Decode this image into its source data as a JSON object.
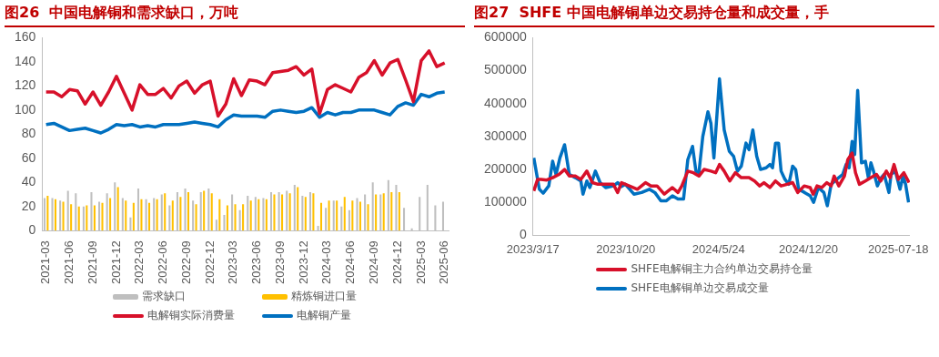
{
  "chart_data": [
    {
      "type": "bar",
      "title": "图26  中国电解铜和需求缺口，万吨",
      "legend": "bottom",
      "ylim": [
        0,
        160
      ],
      "yticks": [
        0,
        20,
        40,
        60,
        80,
        100,
        120,
        140,
        160
      ],
      "categories": [
        "2021-03",
        null,
        null,
        "2021-06",
        null,
        null,
        "2021-09",
        null,
        null,
        "2021-12",
        null,
        null,
        "2022-03",
        null,
        null,
        "2022-06",
        null,
        null,
        "2022-09",
        null,
        null,
        "2022-12",
        null,
        null,
        "2023-03",
        null,
        null,
        "2023-06",
        null,
        null,
        "2023-09",
        null,
        null,
        "2023-12",
        null,
        null,
        "2024-03",
        null,
        null,
        "2024-06",
        null,
        null,
        "2024-09",
        null,
        null,
        "2024-12",
        null,
        null,
        "2025-03",
        null,
        null,
        "2025-06"
      ],
      "series": [
        {
          "name": "需求缺口",
          "color": "#bfbfbf",
          "values": [
            27,
            27,
            25,
            33,
            31,
            20,
            32,
            24,
            31,
            40,
            27,
            11,
            35,
            26,
            27,
            30,
            21,
            32,
            35,
            25,
            32,
            35,
            9,
            13,
            30,
            17,
            29,
            28,
            27,
            32,
            32,
            33,
            38,
            29,
            32,
            4,
            19,
            25,
            20,
            17,
            27,
            30,
            40,
            30,
            42,
            38,
            19,
            2,
            28,
            38,
            21,
            24
          ]
        },
        {
          "name": "精炼铜进口量",
          "color": "#ffc000",
          "values": [
            29,
            26,
            24,
            22,
            20,
            21,
            21,
            23,
            27,
            36,
            25,
            23,
            26,
            23,
            26,
            31,
            25,
            28,
            32,
            22,
            33,
            31,
            26,
            21,
            22,
            22,
            25,
            26,
            26,
            30,
            30,
            31,
            36,
            28,
            31,
            23,
            25,
            25,
            28,
            25,
            24,
            22,
            30,
            31,
            32,
            32,
            null,
            null,
            null,
            null,
            null,
            null
          ]
        },
        {
          "name": "电解铜实际消费量",
          "type": "line",
          "color": "#d7102a",
          "values": [
            115,
            115,
            111,
            117,
            116,
            105,
            115,
            104,
            115,
            128,
            114,
            100,
            121,
            113,
            113,
            118,
            110,
            120,
            124,
            114,
            121,
            124,
            95,
            105,
            126,
            112,
            125,
            124,
            121,
            131,
            132,
            133,
            136,
            129,
            134,
            97,
            117,
            121,
            118,
            115,
            127,
            131,
            141,
            129,
            139,
            142,
            125,
            107,
            141,
            149,
            136,
            139
          ]
        },
        {
          "name": "电解铜产量",
          "type": "line",
          "color": "#0070c0",
          "values": [
            88,
            89,
            86,
            83,
            84,
            85,
            83,
            81,
            84,
            88,
            87,
            88,
            86,
            87,
            86,
            88,
            88,
            88,
            89,
            90,
            89,
            88,
            86,
            92,
            96,
            95,
            95,
            95,
            94,
            99,
            100,
            99,
            98,
            99,
            102,
            94,
            98,
            96,
            98,
            98,
            100,
            100,
            100,
            98,
            96,
            103,
            106,
            104,
            113,
            111,
            114,
            115
          ]
        }
      ]
    },
    {
      "type": "line",
      "title": "图27  SHFE 中国电解铜单边交易持仓量和成交量，手",
      "legend": "bottom",
      "ylim": [
        0,
        600000
      ],
      "yticks": [
        0,
        100000,
        200000,
        300000,
        400000,
        500000,
        600000
      ],
      "xlim": [
        "2023-03-17",
        "2025-08-14"
      ],
      "xticks": [
        {
          "value": "2023-03-17",
          "label": "2023/3/17"
        },
        {
          "value": "2023-10-20",
          "label": "2023/10/20"
        },
        {
          "value": "2024-05-24",
          "label": "2024/5/24"
        },
        {
          "value": "2024-12-20",
          "label": "2024/12/20"
        },
        {
          "value": "2025-07-18",
          "label": "2025-07-18"
        }
      ],
      "series": [
        {
          "name": "SHFE电解铜主力合约单边交易持仓量",
          "color": "#d7102a",
          "x": [
            "2023-03-19",
            "2023-03-28",
            "2023-04-05",
            "2023-04-18",
            "2023-05-02",
            "2023-05-17",
            "2023-05-30",
            "2023-06-10",
            "2023-06-24",
            "2023-07-07",
            "2023-07-21",
            "2023-08-03",
            "2023-08-16",
            "2023-09-03",
            "2023-09-21",
            "2023-10-01",
            "2023-10-10",
            "2023-10-28",
            "2023-11-16",
            "2023-12-05",
            "2023-12-18",
            "2024-01-01",
            "2024-01-18",
            "2024-02-06",
            "2024-02-19",
            "2024-02-28",
            "2024-03-13",
            "2024-03-26",
            "2024-04-08",
            "2024-04-20",
            "2024-05-06",
            "2024-05-17",
            "2024-05-26",
            "2024-06-06",
            "2024-06-19",
            "2024-07-02",
            "2024-07-16",
            "2024-08-03",
            "2024-08-16",
            "2024-08-28",
            "2024-09-07",
            "2024-09-21",
            "2024-10-04",
            "2024-10-17",
            "2024-10-31",
            "2024-11-13",
            "2024-11-25",
            "2024-12-10",
            "2024-12-24",
            "2024-12-31",
            "2025-01-09",
            "2025-01-20",
            "2025-02-01",
            "2025-02-11",
            "2025-02-18",
            "2025-03-01",
            "2025-03-14",
            "2025-03-22",
            "2025-04-01",
            "2025-04-09",
            "2025-04-18",
            "2025-05-02",
            "2025-05-15",
            "2025-05-28",
            "2025-06-07",
            "2025-06-20",
            "2025-06-29",
            "2025-07-08",
            "2025-07-18",
            "2025-07-31",
            "2025-08-12"
          ],
          "values": [
            135000,
            170000,
            170000,
            168000,
            175000,
            185000,
            200000,
            180000,
            180000,
            170000,
            195000,
            160000,
            155000,
            155000,
            155000,
            130000,
            160000,
            150000,
            140000,
            160000,
            150000,
            150000,
            125000,
            145000,
            130000,
            150000,
            195000,
            190000,
            180000,
            200000,
            195000,
            190000,
            215000,
            195000,
            165000,
            190000,
            175000,
            175000,
            165000,
            150000,
            160000,
            145000,
            165000,
            150000,
            155000,
            160000,
            130000,
            150000,
            145000,
            125000,
            150000,
            145000,
            160000,
            150000,
            180000,
            150000,
            180000,
            230000,
            250000,
            190000,
            155000,
            165000,
            175000,
            185000,
            165000,
            195000,
            175000,
            215000,
            170000,
            190000,
            160000
          ]
        },
        {
          "name": "SHFE电解铜单边交易成交量",
          "color": "#0070c0",
          "x": [
            "2023-03-19",
            "2023-04-01",
            "2023-04-10",
            "2023-04-23",
            "2023-05-02",
            "2023-05-10",
            "2023-05-19",
            "2023-05-30",
            "2023-06-10",
            "2023-06-24",
            "2023-07-07",
            "2023-07-12",
            "2023-07-21",
            "2023-07-28",
            "2023-08-10",
            "2023-08-21",
            "2023-09-03",
            "2023-09-21",
            "2023-10-01",
            "2023-10-10",
            "2023-10-19",
            "2023-11-08",
            "2023-11-26",
            "2023-12-14",
            "2023-12-27",
            "2024-01-10",
            "2024-01-23",
            "2024-02-06",
            "2024-02-19",
            "2024-03-03",
            "2024-03-13",
            "2024-03-24",
            "2024-04-01",
            "2024-04-08",
            "2024-04-17",
            "2024-04-29",
            "2024-05-06",
            "2024-05-13",
            "2024-05-26",
            "2024-06-06",
            "2024-06-18",
            "2024-06-28",
            "2024-07-07",
            "2024-07-16",
            "2024-07-27",
            "2024-08-03",
            "2024-08-12",
            "2024-08-21",
            "2024-08-30",
            "2024-09-12",
            "2024-09-21",
            "2024-09-27",
            "2024-10-04",
            "2024-10-11",
            "2024-10-17",
            "2024-10-26",
            "2024-11-04",
            "2024-11-13",
            "2024-11-20",
            "2024-11-27",
            "2024-12-11",
            "2024-12-24",
            "2025-01-01",
            "2025-01-12",
            "2025-01-25",
            "2025-02-02",
            "2025-02-11",
            "2025-02-24",
            "2025-03-10",
            "2025-03-18",
            "2025-03-25",
            "2025-04-01",
            "2025-04-07",
            "2025-04-14",
            "2025-04-23",
            "2025-05-02",
            "2025-05-09",
            "2025-05-15",
            "2025-05-21",
            "2025-05-30",
            "2025-06-08",
            "2025-06-15",
            "2025-06-26",
            "2025-07-01",
            "2025-07-11",
            "2025-07-22",
            "2025-07-29",
            "2025-08-04",
            "2025-08-11"
          ],
          "values": [
            235000,
            140000,
            128000,
            150000,
            225000,
            185000,
            235000,
            275000,
            185000,
            175000,
            165000,
            125000,
            165000,
            145000,
            195000,
            160000,
            145000,
            150000,
            160000,
            148000,
            155000,
            125000,
            130000,
            140000,
            130000,
            105000,
            105000,
            120000,
            110000,
            110000,
            230000,
            270000,
            195000,
            190000,
            300000,
            375000,
            340000,
            235000,
            475000,
            320000,
            255000,
            240000,
            195000,
            210000,
            280000,
            260000,
            320000,
            240000,
            200000,
            205000,
            215000,
            205000,
            280000,
            280000,
            195000,
            170000,
            155000,
            210000,
            200000,
            140000,
            130000,
            120000,
            100000,
            145000,
            130000,
            90000,
            155000,
            170000,
            185000,
            215000,
            205000,
            285000,
            245000,
            440000,
            220000,
            225000,
            175000,
            220000,
            195000,
            150000,
            175000,
            185000,
            130000,
            185000,
            195000,
            140000,
            180000,
            155000,
            100000
          ]
        }
      ]
    }
  ]
}
